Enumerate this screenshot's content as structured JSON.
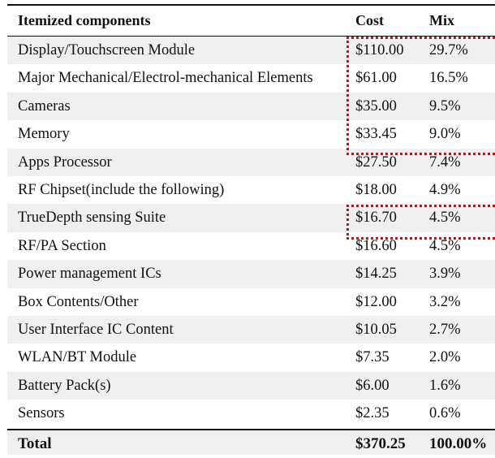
{
  "table": {
    "headers": {
      "component": "Itemized components",
      "cost": "Cost",
      "mix": "Mix"
    },
    "rows": [
      {
        "component": "Display/Touchscreen Module",
        "cost": "$110.00",
        "mix": "29.7%"
      },
      {
        "component": "Major Mechanical/Electrol-mechanical Elements",
        "cost": "$61.00",
        "mix": "16.5%"
      },
      {
        "component": "Cameras",
        "cost": "$35.00",
        "mix": "9.5%"
      },
      {
        "component": "Memory",
        "cost": "$33.45",
        "mix": "9.0%"
      },
      {
        "component": "Apps Processor",
        "cost": "$27.50",
        "mix": "7.4%"
      },
      {
        "component": "RF Chipset(include the following)",
        "cost": "$18.00",
        "mix": "4.9%"
      },
      {
        "component": "TrueDepth sensing Suite",
        "cost": "$16.70",
        "mix": "4.5%"
      },
      {
        "component": "RF/PA Section",
        "cost": "$16.60",
        "mix": "4.5%"
      },
      {
        "component": "Power management ICs",
        "cost": "$14.25",
        "mix": "3.9%"
      },
      {
        "component": "Box Contents/Other",
        "cost": "$12.00",
        "mix": "3.2%"
      },
      {
        "component": "User Interface IC Content",
        "cost": "$10.05",
        "mix": "2.7%"
      },
      {
        "component": "WLAN/BT Module",
        "cost": "$7.35",
        "mix": "2.0%"
      },
      {
        "component": "Battery Pack(s)",
        "cost": "$6.00",
        "mix": "1.6%"
      },
      {
        "component": "Sensors",
        "cost": "$2.35",
        "mix": "0.6%"
      }
    ],
    "total": {
      "component": "Total",
      "cost": "$370.25",
      "mix": "100.00%"
    }
  },
  "colors": {
    "highlight": "#c0141a",
    "stripe": "#efefef"
  }
}
